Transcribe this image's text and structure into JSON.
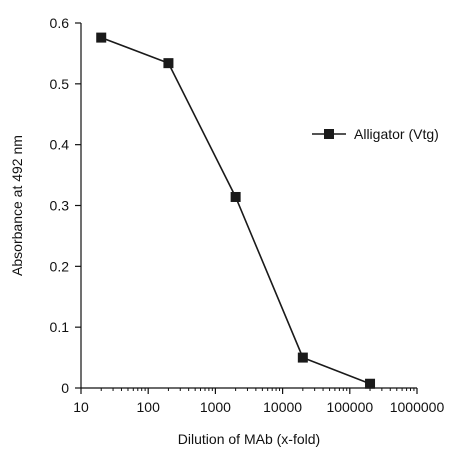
{
  "chart_data": {
    "type": "line",
    "title": "",
    "xlabel": "Dilution of MAb (x-fold)",
    "ylabel": "Absorbance at  492 nm",
    "x_scale": "log",
    "xlim": [
      10,
      1000000
    ],
    "ylim": [
      0,
      0.6
    ],
    "x_ticks": [
      10,
      100,
      1000,
      10000,
      100000,
      1000000
    ],
    "x_tick_labels": [
      "10",
      "100",
      "1000",
      "10000",
      "100000",
      "1000000"
    ],
    "y_ticks": [
      0,
      0.1,
      0.2,
      0.3,
      0.4,
      0.5,
      0.6
    ],
    "y_tick_labels": [
      "0",
      "0.1",
      "0.2",
      "0.3",
      "0.4",
      "0.5",
      "0.6"
    ],
    "grid": false,
    "legend_position": "right",
    "series": [
      {
        "name": "Alligator (Vtg)",
        "marker": "square",
        "color": "#1a1a1a",
        "x": [
          20,
          200,
          2000,
          20000,
          200000
        ],
        "y": [
          0.576,
          0.534,
          0.314,
          0.05,
          0.007
        ]
      }
    ]
  }
}
